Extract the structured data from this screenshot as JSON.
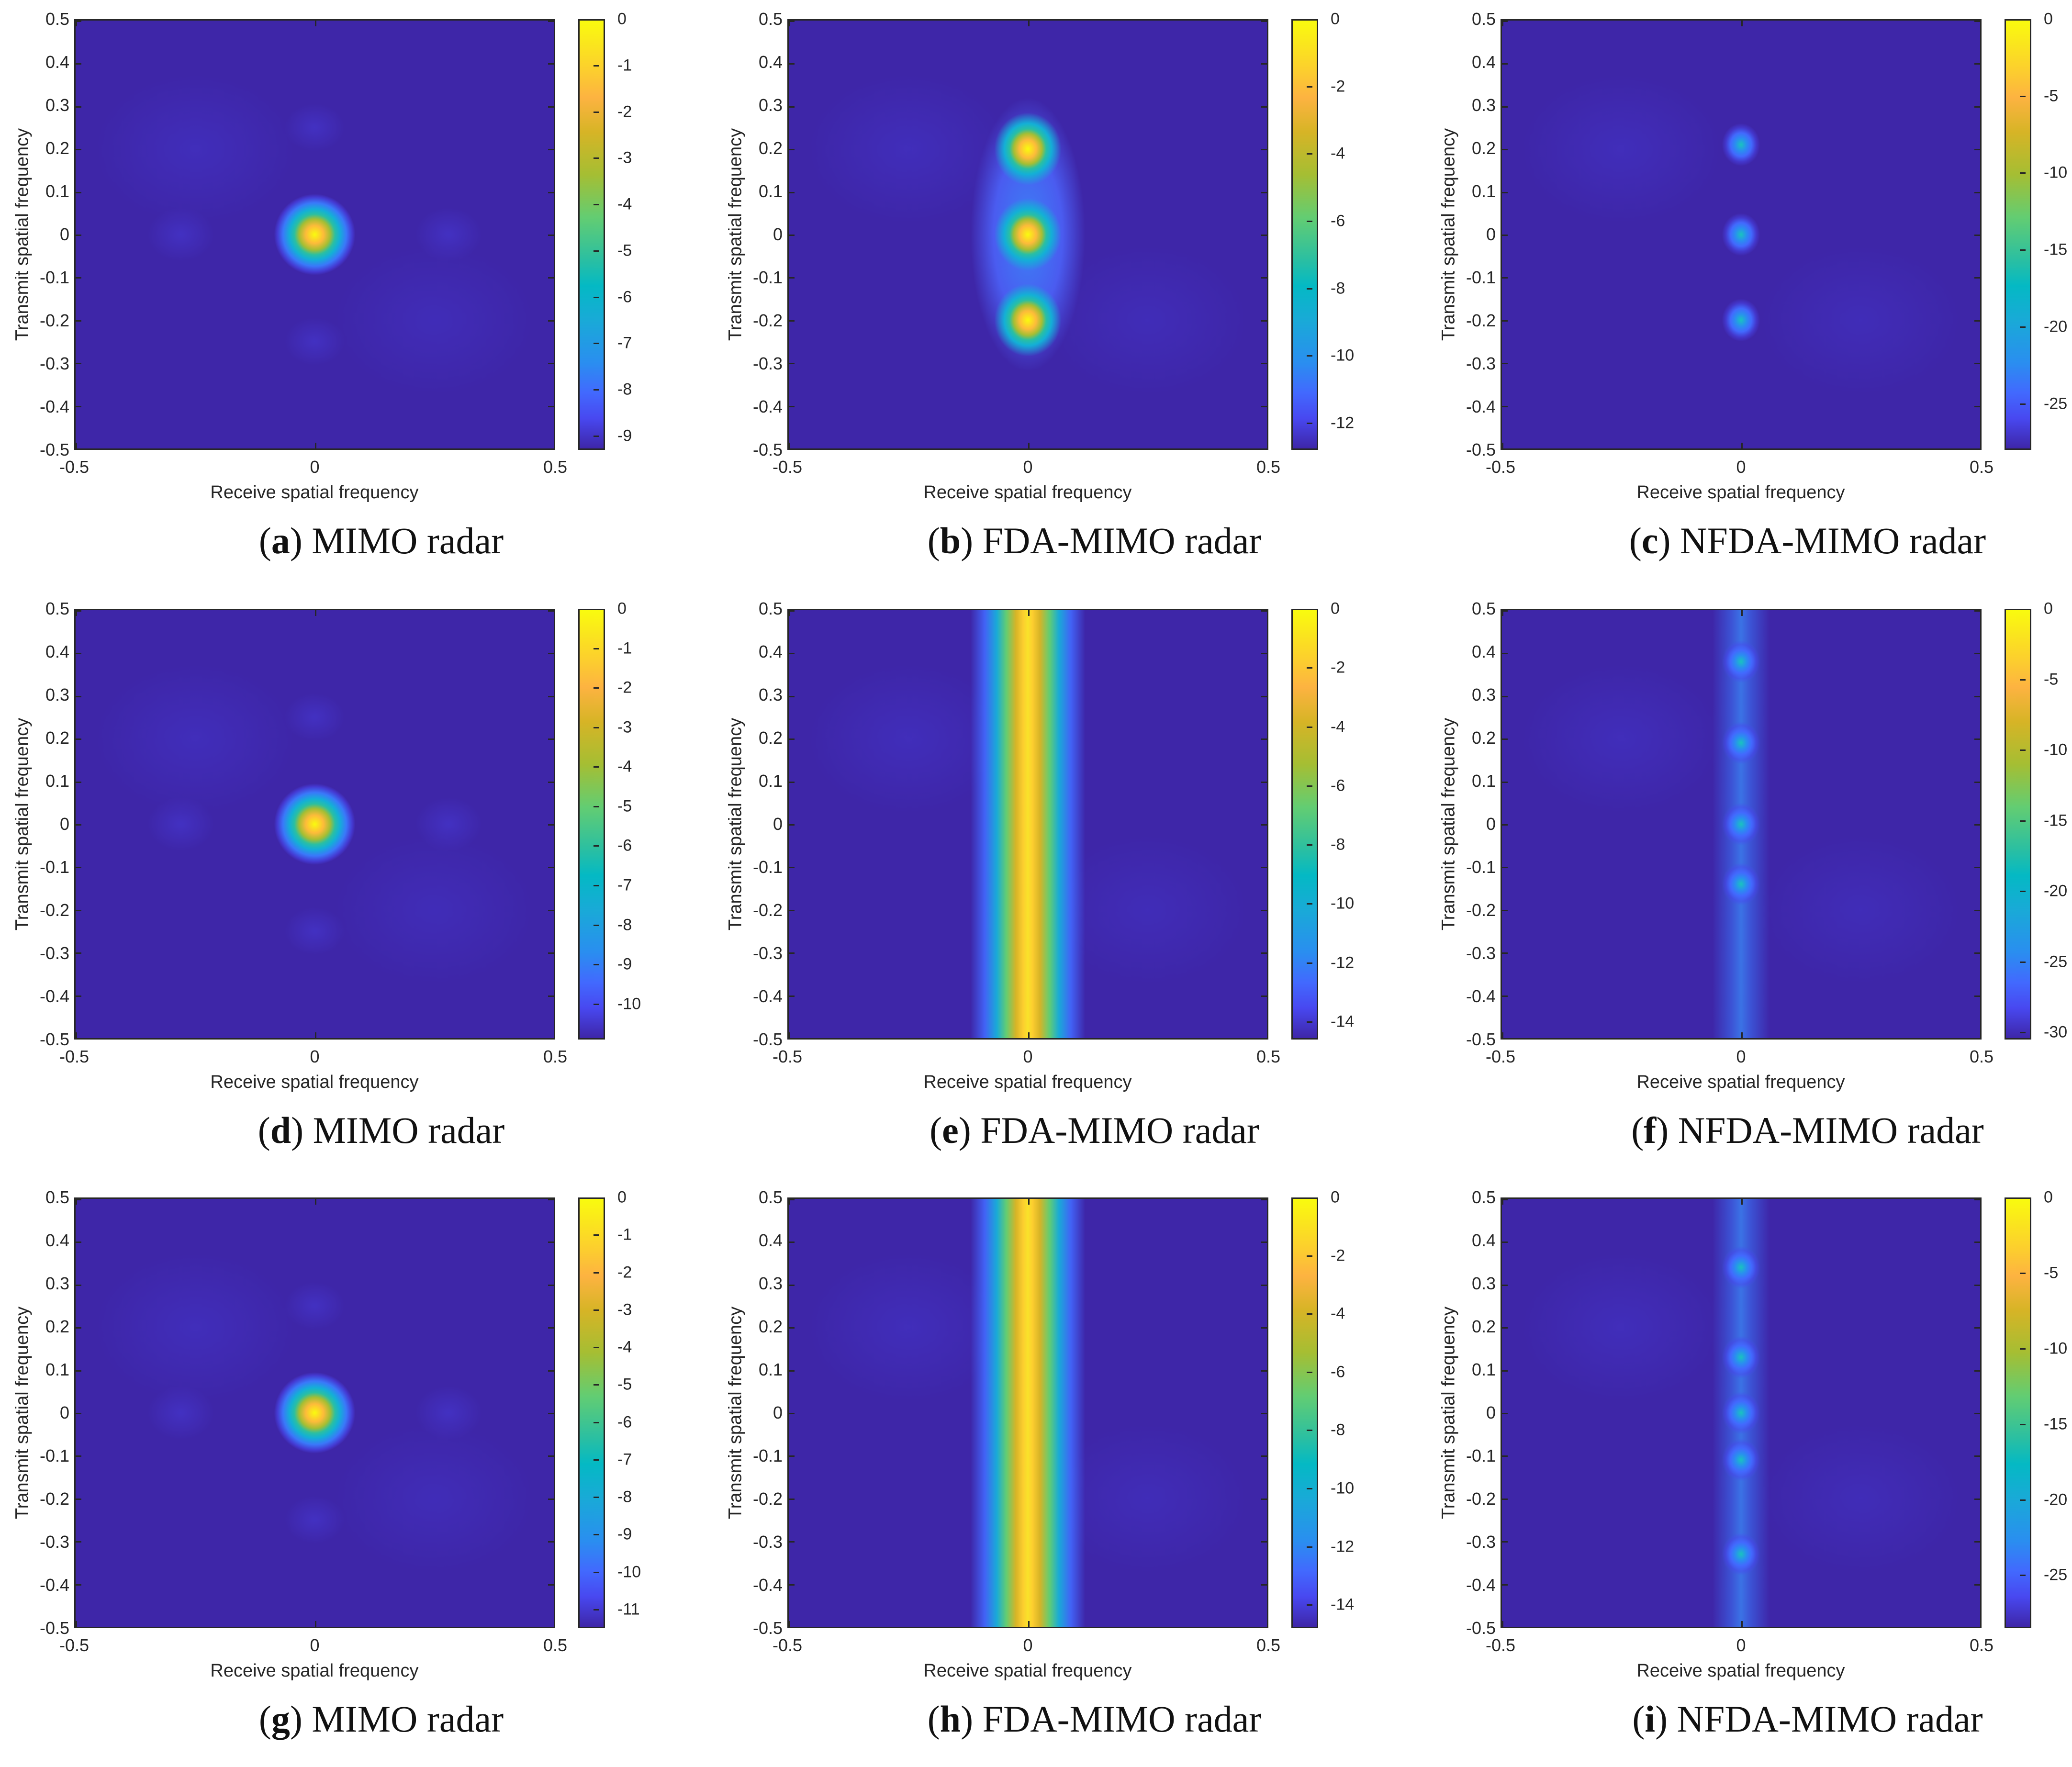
{
  "figure": {
    "common": {
      "xlabel": "Receive spatial frequency",
      "ylabel": "Transmit spatial frequency",
      "xticks": [
        "-0.5",
        "0",
        "0.5"
      ],
      "yticks": [
        "0.5",
        "0.4",
        "0.3",
        "0.2",
        "0.1",
        "0",
        "-0.1",
        "-0.2",
        "-0.3",
        "-0.4",
        "-0.5"
      ],
      "colormap": "parula",
      "background_color": "#3e26a8"
    },
    "panels": [
      {
        "id": "a",
        "letter": "a",
        "title": "MIMO radar"
      },
      {
        "id": "b",
        "letter": "b",
        "title": "FDA-MIMO radar"
      },
      {
        "id": "c",
        "letter": "c",
        "title": "NFDA-MIMO radar"
      },
      {
        "id": "d",
        "letter": "d",
        "title": "MIMO radar"
      },
      {
        "id": "e",
        "letter": "e",
        "title": "FDA-MIMO radar"
      },
      {
        "id": "f",
        "letter": "f",
        "title": "NFDA-MIMO radar"
      },
      {
        "id": "g",
        "letter": "g",
        "title": "MIMO radar"
      },
      {
        "id": "h",
        "letter": "h",
        "title": "FDA-MIMO radar"
      },
      {
        "id": "i",
        "letter": "i",
        "title": "NFDA-MIMO radar"
      }
    ]
  },
  "chart_data": [
    {
      "panel": "a",
      "type": "heatmap",
      "title": "(a) MIMO radar",
      "xlabel": "Receive spatial frequency",
      "ylabel": "Transmit spatial frequency",
      "xlim": [
        -0.5,
        0.5
      ],
      "ylim": [
        -0.5,
        0.5
      ],
      "colorbar": {
        "range": [
          -9.3,
          0
        ],
        "ticks": [
          0,
          -1,
          -2,
          -3,
          -4,
          -5,
          -6,
          -7,
          -8,
          -9
        ]
      },
      "peaks": [
        {
          "x": 0,
          "y": 0,
          "value": 0,
          "shape": "round"
        }
      ]
    },
    {
      "panel": "b",
      "type": "heatmap",
      "title": "(b) FDA-MIMO radar",
      "xlabel": "Receive spatial frequency",
      "ylabel": "Transmit spatial frequency",
      "xlim": [
        -0.5,
        0.5
      ],
      "ylim": [
        -0.5,
        0.5
      ],
      "colorbar": {
        "range": [
          -12.8,
          0
        ],
        "ticks": [
          0,
          -2,
          -4,
          -6,
          -8,
          -10,
          -12
        ]
      },
      "peaks": [
        {
          "x": 0,
          "y": 0.2,
          "value": 0
        },
        {
          "x": 0,
          "y": 0,
          "value": 0
        },
        {
          "x": 0,
          "y": -0.2,
          "value": 0
        }
      ]
    },
    {
      "panel": "c",
      "type": "heatmap",
      "title": "(c) NFDA-MIMO radar",
      "xlabel": "Receive spatial frequency",
      "ylabel": "Transmit spatial frequency",
      "xlim": [
        -0.5,
        0.5
      ],
      "ylim": [
        -0.5,
        0.5
      ],
      "colorbar": {
        "range": [
          -28,
          0
        ],
        "ticks": [
          0,
          -5,
          -10,
          -15,
          -20,
          -25
        ]
      },
      "peaks": [
        {
          "x": 0,
          "y": 0.21,
          "value": 0,
          "shape": "sharp"
        },
        {
          "x": 0,
          "y": 0,
          "value": 0,
          "shape": "sharp"
        },
        {
          "x": 0,
          "y": -0.2,
          "value": 0,
          "shape": "sharp"
        }
      ]
    },
    {
      "panel": "d",
      "type": "heatmap",
      "title": "(d) MIMO radar",
      "xlabel": "Receive spatial frequency",
      "ylabel": "Transmit spatial frequency",
      "xlim": [
        -0.5,
        0.5
      ],
      "ylim": [
        -0.5,
        0.5
      ],
      "colorbar": {
        "range": [
          -10.9,
          0
        ],
        "ticks": [
          0,
          -1,
          -2,
          -3,
          -4,
          -5,
          -6,
          -7,
          -8,
          -9,
          -10
        ]
      },
      "peaks": [
        {
          "x": 0,
          "y": 0,
          "value": 0,
          "shape": "round"
        }
      ]
    },
    {
      "panel": "e",
      "type": "heatmap",
      "title": "(e) FDA-MIMO radar",
      "xlabel": "Receive spatial frequency",
      "ylabel": "Transmit spatial frequency",
      "xlim": [
        -0.5,
        0.5
      ],
      "ylim": [
        -0.5,
        0.5
      ],
      "colorbar": {
        "range": [
          -14.6,
          0
        ],
        "ticks": [
          0,
          -2,
          -4,
          -6,
          -8,
          -10,
          -12,
          -14
        ]
      },
      "peaks": [
        {
          "x": 0,
          "y_range": [
            -0.5,
            0.5
          ],
          "value": 0,
          "shape": "vertical-ridge"
        }
      ]
    },
    {
      "panel": "f",
      "type": "heatmap",
      "title": "(f) NFDA-MIMO radar",
      "xlabel": "Receive spatial frequency",
      "ylabel": "Transmit spatial frequency",
      "xlim": [
        -0.5,
        0.5
      ],
      "ylim": [
        -0.5,
        0.5
      ],
      "colorbar": {
        "range": [
          -30.5,
          0
        ],
        "ticks": [
          0,
          -5,
          -10,
          -15,
          -20,
          -25,
          -30
        ]
      },
      "peaks": [
        {
          "x": 0,
          "y": 0.38,
          "value": 0
        },
        {
          "x": 0,
          "y": 0.19,
          "value": 0
        },
        {
          "x": 0,
          "y": 0,
          "value": 0
        },
        {
          "x": 0,
          "y": -0.14,
          "value": 0
        }
      ]
    },
    {
      "panel": "g",
      "type": "heatmap",
      "title": "(g) MIMO radar",
      "xlabel": "Receive spatial frequency",
      "ylabel": "Transmit spatial frequency",
      "xlim": [
        -0.5,
        0.5
      ],
      "ylim": [
        -0.5,
        0.5
      ],
      "colorbar": {
        "range": [
          -11.5,
          0
        ],
        "ticks": [
          0,
          -1,
          -2,
          -3,
          -4,
          -5,
          -6,
          -7,
          -8,
          -9,
          -10,
          -11
        ]
      },
      "peaks": [
        {
          "x": 0,
          "y": 0,
          "value": 0,
          "shape": "round"
        }
      ]
    },
    {
      "panel": "h",
      "type": "heatmap",
      "title": "(h) FDA-MIMO radar",
      "xlabel": "Receive spatial frequency",
      "ylabel": "Transmit spatial frequency",
      "xlim": [
        -0.5,
        0.5
      ],
      "ylim": [
        -0.5,
        0.5
      ],
      "colorbar": {
        "range": [
          -14.8,
          0
        ],
        "ticks": [
          0,
          -2,
          -4,
          -6,
          -8,
          -10,
          -12,
          -14
        ]
      },
      "peaks": [
        {
          "x": 0,
          "y_range": [
            -0.5,
            0.5
          ],
          "value": 0,
          "shape": "vertical-ridge"
        }
      ]
    },
    {
      "panel": "i",
      "type": "heatmap",
      "title": "(i) NFDA-MIMO radar",
      "xlabel": "Receive spatial frequency",
      "ylabel": "Transmit spatial frequency",
      "xlim": [
        -0.5,
        0.5
      ],
      "ylim": [
        -0.5,
        0.5
      ],
      "colorbar": {
        "range": [
          -28.5,
          0
        ],
        "ticks": [
          0,
          -5,
          -10,
          -15,
          -20,
          -25
        ]
      },
      "peaks": [
        {
          "x": 0,
          "y": 0.34,
          "value": 0
        },
        {
          "x": 0,
          "y": 0.13,
          "value": 0
        },
        {
          "x": 0,
          "y": 0,
          "value": 0
        },
        {
          "x": 0,
          "y": -0.11,
          "value": 0
        },
        {
          "x": 0,
          "y": -0.33,
          "value": 0
        }
      ]
    }
  ]
}
